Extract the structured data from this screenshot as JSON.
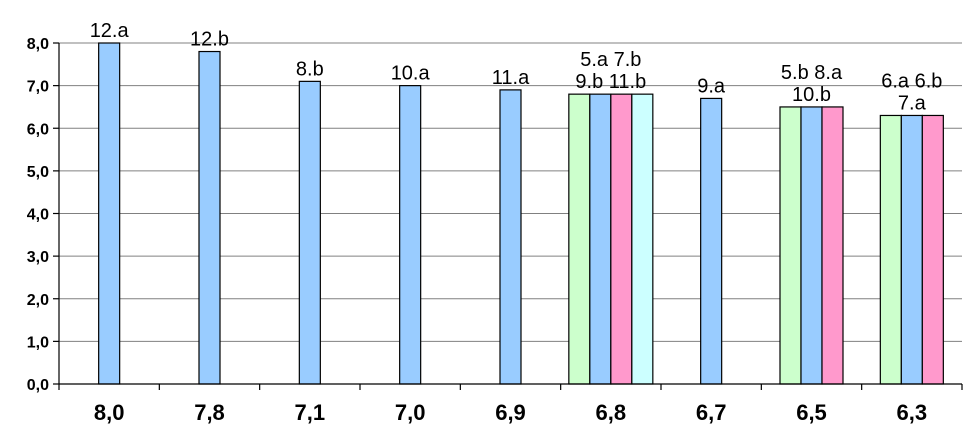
{
  "chart_data": {
    "type": "bar",
    "categories": [
      "8,0",
      "7,8",
      "7,1",
      "7,0",
      "6,9",
      "6,8",
      "6,7",
      "6,5",
      "6,3"
    ],
    "groups": [
      {
        "category": "8,0",
        "label_lines": [
          "12.a"
        ],
        "bars": [
          {
            "value": 8.0,
            "color": "#99ccff"
          }
        ]
      },
      {
        "category": "7,8",
        "label_lines": [
          "12.b"
        ],
        "bars": [
          {
            "value": 7.8,
            "color": "#99ccff"
          }
        ]
      },
      {
        "category": "7,1",
        "label_lines": [
          "8.b"
        ],
        "bars": [
          {
            "value": 7.1,
            "color": "#99ccff"
          }
        ]
      },
      {
        "category": "7,0",
        "label_lines": [
          "10.a"
        ],
        "bars": [
          {
            "value": 7.0,
            "color": "#99ccff"
          }
        ]
      },
      {
        "category": "6,9",
        "label_lines": [
          "11.a"
        ],
        "bars": [
          {
            "value": 6.9,
            "color": "#99ccff"
          }
        ]
      },
      {
        "category": "6,8",
        "label_lines": [
          "5.a 7.b",
          "9.b 11.b"
        ],
        "bars": [
          {
            "value": 6.8,
            "color": "#ccffcc"
          },
          {
            "value": 6.8,
            "color": "#99ccff"
          },
          {
            "value": 6.8,
            "color": "#ff99cc"
          },
          {
            "value": 6.8,
            "color": "#ccffff"
          }
        ]
      },
      {
        "category": "6,7",
        "label_lines": [
          "9.a"
        ],
        "bars": [
          {
            "value": 6.7,
            "color": "#99ccff"
          }
        ]
      },
      {
        "category": "6,5",
        "label_lines": [
          "5.b 8.a",
          "10.b"
        ],
        "bars": [
          {
            "value": 6.5,
            "color": "#ccffcc"
          },
          {
            "value": 6.5,
            "color": "#99ccff"
          },
          {
            "value": 6.5,
            "color": "#ff99cc"
          }
        ]
      },
      {
        "category": "6,3",
        "label_lines": [
          "6.a 6.b",
          "7.a"
        ],
        "bars": [
          {
            "value": 6.3,
            "color": "#ccffcc"
          },
          {
            "value": 6.3,
            "color": "#99ccff"
          },
          {
            "value": 6.3,
            "color": "#ff99cc"
          }
        ]
      }
    ],
    "y_ticks": [
      "0,0",
      "1,0",
      "2,0",
      "3,0",
      "4,0",
      "5,0",
      "6,0",
      "7,0",
      "8,0"
    ],
    "ylim": [
      0,
      8
    ],
    "title": "",
    "xlabel": "",
    "ylabel": "",
    "grid": true,
    "legend": "none"
  }
}
